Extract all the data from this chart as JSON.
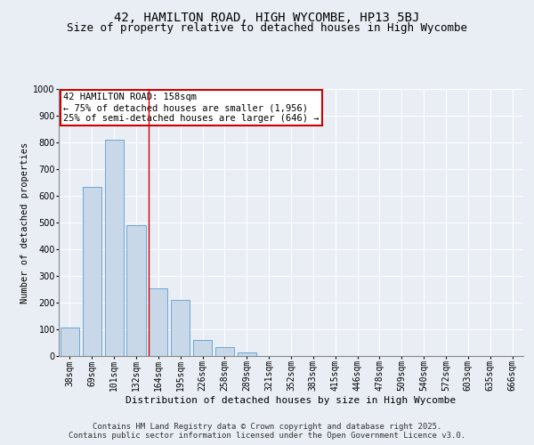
{
  "title_line1": "42, HAMILTON ROAD, HIGH WYCOMBE, HP13 5BJ",
  "title_line2": "Size of property relative to detached houses in High Wycombe",
  "xlabel": "Distribution of detached houses by size in High Wycombe",
  "ylabel": "Number of detached properties",
  "categories": [
    "38sqm",
    "69sqm",
    "101sqm",
    "132sqm",
    "164sqm",
    "195sqm",
    "226sqm",
    "258sqm",
    "289sqm",
    "321sqm",
    "352sqm",
    "383sqm",
    "415sqm",
    "446sqm",
    "478sqm",
    "509sqm",
    "540sqm",
    "572sqm",
    "603sqm",
    "635sqm",
    "666sqm"
  ],
  "values": [
    108,
    635,
    810,
    490,
    255,
    210,
    60,
    35,
    15,
    0,
    0,
    0,
    0,
    0,
    0,
    0,
    0,
    0,
    0,
    0,
    0
  ],
  "bar_color": "#c8d8e8",
  "bar_edge_color": "#5b9bd5",
  "vline_x_index": 4,
  "vline_color": "#cc0000",
  "annotation_text": "42 HAMILTON ROAD: 158sqm\n← 75% of detached houses are smaller (1,956)\n25% of semi-detached houses are larger (646) →",
  "annotation_box_color": "#ffffff",
  "annotation_box_edge_color": "#cc0000",
  "ylim": [
    0,
    1000
  ],
  "yticks": [
    0,
    100,
    200,
    300,
    400,
    500,
    600,
    700,
    800,
    900,
    1000
  ],
  "background_color": "#e8eef4",
  "plot_background_color": "#e8eef4",
  "footer_text": "Contains HM Land Registry data © Crown copyright and database right 2025.\nContains public sector information licensed under the Open Government Licence v3.0.",
  "title_fontsize": 10,
  "subtitle_fontsize": 9,
  "xlabel_fontsize": 8,
  "ylabel_fontsize": 7.5,
  "tick_fontsize": 7,
  "footer_fontsize": 6.5,
  "annotation_fontsize": 7.5
}
